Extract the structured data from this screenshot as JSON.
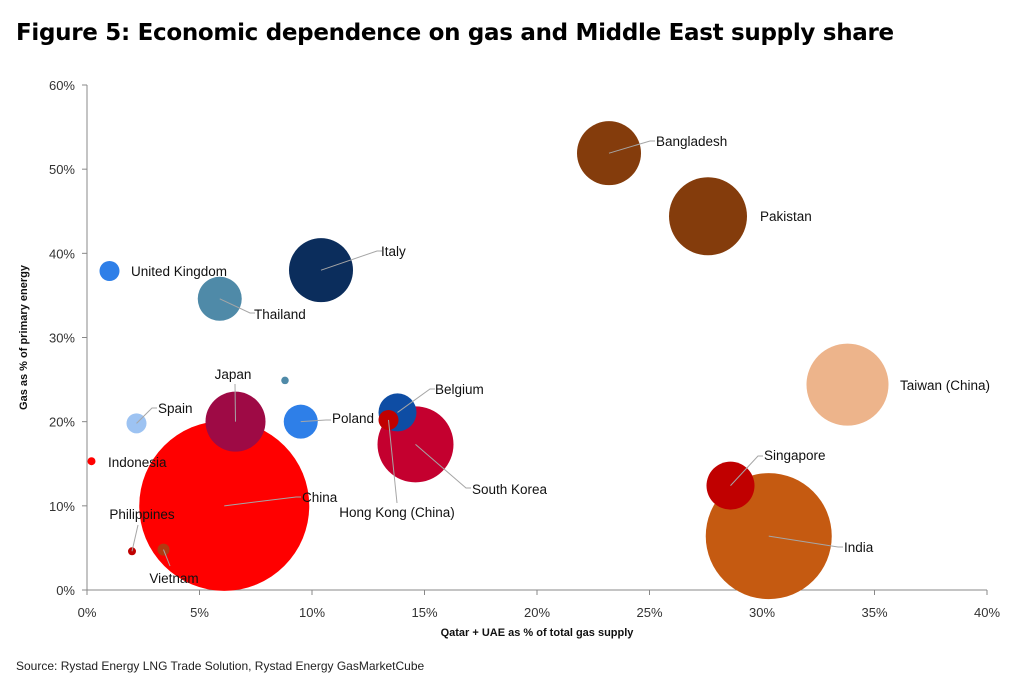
{
  "chart_data": {
    "type": "bubble",
    "title": "Figure 5: Economic dependence on gas and Middle East supply share",
    "xlabel": "Qatar + UAE as % of total gas supply",
    "ylabel": "Gas as % of primary energy",
    "xlim": [
      0,
      40
    ],
    "ylim": [
      0,
      60
    ],
    "xticks": [
      "0%",
      "5%",
      "10%",
      "15%",
      "20%",
      "25%",
      "30%",
      "35%",
      "40%"
    ],
    "yticks": [
      "0%",
      "10%",
      "20%",
      "30%",
      "40%",
      "50%",
      "60%"
    ],
    "grid": false,
    "legend": "none",
    "points": [
      {
        "label": "Bangladesh",
        "x": 23.2,
        "y": 51.9,
        "size": 1024,
        "color": "#843C0C"
      },
      {
        "label": "Pakistan",
        "x": 27.6,
        "y": 44.4,
        "size": 1521,
        "color": "#843C0C"
      },
      {
        "label": "Italy",
        "x": 10.4,
        "y": 38.0,
        "size": 1024,
        "color": "#0B2D5C"
      },
      {
        "label": "United Kingdom",
        "x": 1.0,
        "y": 37.9,
        "size": 100,
        "color": "#2E7FE8"
      },
      {
        "label": "Thailand",
        "x": 5.9,
        "y": 34.6,
        "size": 484,
        "color": "#4F8AA8"
      },
      {
        "label": "Taiwan (China)",
        "x": 33.8,
        "y": 24.4,
        "size": 1681,
        "color": "#EDB48B"
      },
      {
        "label": "",
        "x": 8.8,
        "y": 24.9,
        "size": 14,
        "color": "#4F8AA8"
      },
      {
        "label": "Japan",
        "x": 6.6,
        "y": 20.0,
        "size": 900,
        "color": "#9E0A45"
      },
      {
        "label": "Spain",
        "x": 2.2,
        "y": 19.8,
        "size": 100,
        "color": "#9DC3F2"
      },
      {
        "label": "Poland",
        "x": 9.5,
        "y": 20.0,
        "size": 289,
        "color": "#2E7FE8"
      },
      {
        "label": "Belgium",
        "x": 13.8,
        "y": 21.1,
        "size": 361,
        "color": "#0E4DA4"
      },
      {
        "label": "South Korea",
        "x": 14.6,
        "y": 17.3,
        "size": 1444,
        "color": "#C4002F"
      },
      {
        "label": "Hong Kong (China)",
        "x": 13.4,
        "y": 20.2,
        "size": 100,
        "color": "#C00000"
      },
      {
        "label": "Indonesia",
        "x": 0.2,
        "y": 15.3,
        "size": 16,
        "color": "#FF0000"
      },
      {
        "label": "Singapore",
        "x": 28.6,
        "y": 12.4,
        "size": 576,
        "color": "#C00000"
      },
      {
        "label": "China",
        "x": 6.1,
        "y": 10.0,
        "size": 7225,
        "color": "#FF0000"
      },
      {
        "label": "India",
        "x": 30.3,
        "y": 6.4,
        "size": 3969,
        "color": "#C55A11"
      },
      {
        "label": "Philippines",
        "x": 2.0,
        "y": 4.6,
        "size": 16,
        "color": "#C00000"
      },
      {
        "label": "Vietnam",
        "x": 3.4,
        "y": 4.8,
        "size": 36,
        "color": "#B23A12"
      }
    ]
  },
  "source": "Source: Rystad Energy LNG Trade Solution, Rystad Energy GasMarketCube"
}
